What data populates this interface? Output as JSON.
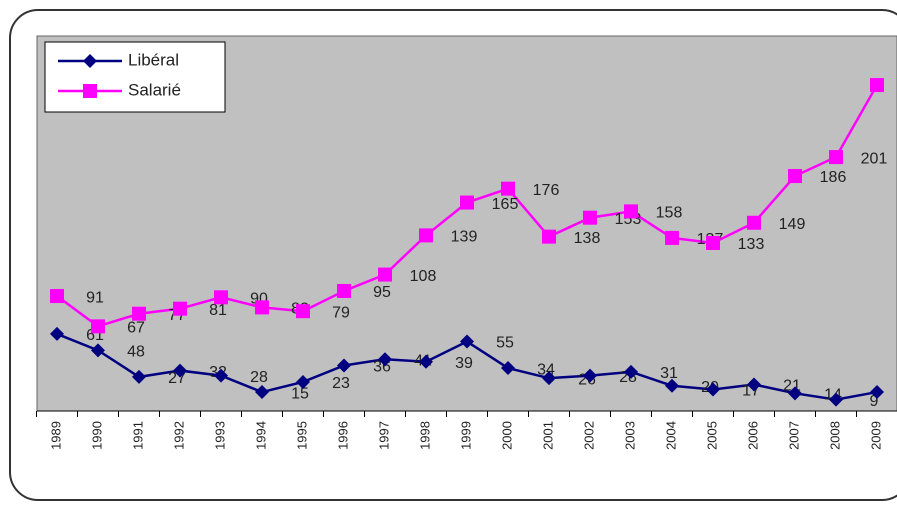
{
  "chart_data": {
    "type": "line",
    "categories": [
      "1989",
      "1990",
      "1991",
      "1992",
      "1993",
      "1994",
      "1995",
      "1996",
      "1997",
      "1998",
      "1999",
      "2000",
      "2001",
      "2002",
      "2003",
      "2004",
      "2005",
      "2006",
      "2007",
      "2008",
      "2009"
    ],
    "series": [
      {
        "name": "Libéral",
        "color": "#000080",
        "values": [
          61,
          48,
          27,
          32,
          28,
          15,
          23,
          36,
          41,
          39,
          55,
          34,
          26,
          28,
          31,
          20,
          17,
          21,
          14,
          9,
          15
        ]
      },
      {
        "name": "Salarié",
        "color": "#ff00ff",
        "values": [
          91,
          67,
          77,
          81,
          90,
          82,
          79,
          95,
          108,
          139,
          165,
          176,
          138,
          153,
          158,
          137,
          133,
          149,
          186,
          201,
          258
        ]
      }
    ],
    "ylim": [
      0,
      300
    ],
    "legend": "top-left",
    "background": "#c0c0c0"
  }
}
